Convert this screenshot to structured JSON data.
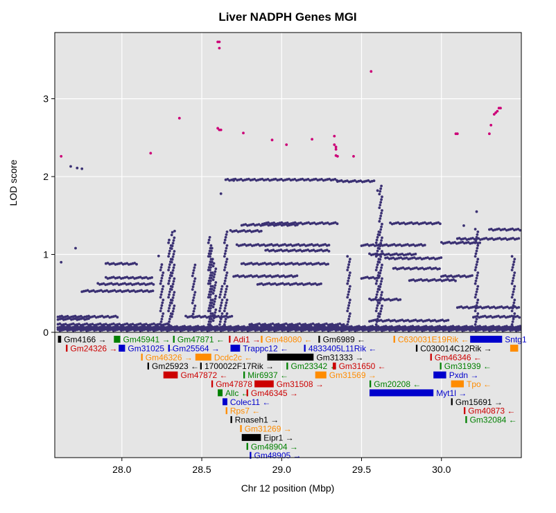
{
  "chart_data": {
    "type": "scatter",
    "title": "Liver NADPH Genes MGI",
    "xlabel": "Chr 12 position (Mbp)",
    "ylabel": "LOD score",
    "xlim": [
      27.58,
      30.5
    ],
    "ylim": [
      0,
      3.85
    ],
    "x_ticks": [
      "28.0",
      "28.5",
      "29.0",
      "29.5",
      "30.0"
    ],
    "y_ticks": [
      "0",
      "1",
      "2",
      "3"
    ],
    "grid": true,
    "colors": {
      "background": "#e5e5e5",
      "grid": "#ffffff",
      "points": "#3b3173",
      "highlight": "#cc0077"
    },
    "highlight_points": [
      {
        "x": 27.62,
        "y": 2.26
      },
      {
        "x": 28.18,
        "y": 2.3
      },
      {
        "x": 28.36,
        "y": 2.75
      },
      {
        "x": 28.6,
        "y": 3.73
      },
      {
        "x": 28.61,
        "y": 3.73
      },
      {
        "x": 28.61,
        "y": 3.65
      },
      {
        "x": 28.6,
        "y": 2.62
      },
      {
        "x": 28.61,
        "y": 2.6
      },
      {
        "x": 28.62,
        "y": 2.6
      },
      {
        "x": 28.76,
        "y": 2.56
      },
      {
        "x": 28.94,
        "y": 2.47
      },
      {
        "x": 29.03,
        "y": 2.41
      },
      {
        "x": 29.19,
        "y": 2.48
      },
      {
        "x": 29.33,
        "y": 2.52
      },
      {
        "x": 29.33,
        "y": 2.41
      },
      {
        "x": 29.34,
        "y": 2.38
      },
      {
        "x": 29.34,
        "y": 2.35
      },
      {
        "x": 29.34,
        "y": 2.27
      },
      {
        "x": 29.35,
        "y": 2.26
      },
      {
        "x": 29.45,
        "y": 2.26
      },
      {
        "x": 29.56,
        "y": 3.35
      },
      {
        "x": 30.09,
        "y": 2.55
      },
      {
        "x": 30.1,
        "y": 2.55
      },
      {
        "x": 30.3,
        "y": 2.55
      },
      {
        "x": 30.31,
        "y": 2.66
      },
      {
        "x": 30.33,
        "y": 2.8
      },
      {
        "x": 30.34,
        "y": 2.82
      },
      {
        "x": 30.35,
        "y": 2.84
      },
      {
        "x": 30.36,
        "y": 2.88
      },
      {
        "x": 30.37,
        "y": 2.88
      }
    ],
    "point_segments": [
      {
        "x0": 27.6,
        "x1": 30.5,
        "y": 0.07
      },
      {
        "x0": 27.6,
        "x1": 30.5,
        "y": 0.05
      },
      {
        "x0": 27.6,
        "x1": 30.5,
        "y": 0.03
      },
      {
        "x0": 27.6,
        "x1": 28.3,
        "y": 0.1
      },
      {
        "x0": 28.8,
        "x1": 29.4,
        "y": 0.1
      },
      {
        "x0": 27.6,
        "x1": 27.98,
        "y": 0.2
      },
      {
        "x0": 27.6,
        "x1": 27.8,
        "y": 0.17
      },
      {
        "x0": 27.75,
        "x1": 28.2,
        "y": 0.53
      },
      {
        "x0": 27.85,
        "x1": 28.2,
        "y": 0.62
      },
      {
        "x0": 27.9,
        "x1": 28.2,
        "y": 0.7
      },
      {
        "x0": 27.9,
        "x1": 28.1,
        "y": 0.88
      },
      {
        "x0": 28.65,
        "x1": 29.35,
        "y": 1.96
      },
      {
        "x0": 29.35,
        "x1": 29.58,
        "y": 1.94
      },
      {
        "x0": 28.75,
        "x1": 29.1,
        "y": 1.38
      },
      {
        "x0": 28.88,
        "x1": 29.35,
        "y": 1.4
      },
      {
        "x0": 28.68,
        "x1": 28.88,
        "y": 1.3
      },
      {
        "x0": 28.72,
        "x1": 29.3,
        "y": 1.12
      },
      {
        "x0": 28.9,
        "x1": 29.3,
        "y": 1.05
      },
      {
        "x0": 28.75,
        "x1": 29.3,
        "y": 0.88
      },
      {
        "x0": 28.7,
        "x1": 29.1,
        "y": 0.72
      },
      {
        "x0": 28.85,
        "x1": 29.25,
        "y": 0.62
      },
      {
        "x0": 29.5,
        "x1": 29.9,
        "y": 1.12
      },
      {
        "x0": 29.55,
        "x1": 29.85,
        "y": 1.0
      },
      {
        "x0": 29.68,
        "x1": 30.0,
        "y": 1.4
      },
      {
        "x0": 29.65,
        "x1": 30.0,
        "y": 0.95
      },
      {
        "x0": 29.7,
        "x1": 30.0,
        "y": 0.82
      },
      {
        "x0": 30.0,
        "x1": 30.2,
        "y": 0.72
      },
      {
        "x0": 29.8,
        "x1": 30.1,
        "y": 0.67
      },
      {
        "x0": 29.5,
        "x1": 29.62,
        "y": 0.7
      },
      {
        "x0": 29.55,
        "x1": 29.75,
        "y": 0.42
      },
      {
        "x0": 30.0,
        "x1": 30.25,
        "y": 1.15
      },
      {
        "x0": 30.1,
        "x1": 30.5,
        "y": 1.2
      },
      {
        "x0": 30.3,
        "x1": 30.5,
        "y": 1.32
      },
      {
        "x0": 30.1,
        "x1": 30.5,
        "y": 0.32
      },
      {
        "x0": 30.2,
        "x1": 30.5,
        "y": 0.2
      },
      {
        "x0": 29.55,
        "x1": 30.05,
        "y": 0.15
      },
      {
        "x0": 28.4,
        "x1": 28.7,
        "y": 0.2
      }
    ],
    "point_columns": [
      {
        "x": 28.55,
        "y0": 0.1,
        "y1": 1.25
      },
      {
        "x": 28.56,
        "y0": 0.1,
        "y1": 1.1
      },
      {
        "x": 28.58,
        "y0": 0.15,
        "y1": 0.9
      },
      {
        "x": 28.62,
        "y0": 0.1,
        "y1": 0.6
      },
      {
        "x": 28.65,
        "y0": 0.1,
        "y1": 1.3
      },
      {
        "x": 28.3,
        "y0": 0.1,
        "y1": 1.2
      },
      {
        "x": 28.32,
        "y0": 0.2,
        "y1": 1.3
      },
      {
        "x": 28.25,
        "y0": 0.1,
        "y1": 0.9
      },
      {
        "x": 28.45,
        "y0": 0.2,
        "y1": 0.9
      },
      {
        "x": 29.42,
        "y0": 0.1,
        "y1": 1.0
      },
      {
        "x": 29.6,
        "y0": 0.1,
        "y1": 1.3
      },
      {
        "x": 29.62,
        "y0": 0.2,
        "y1": 1.9
      },
      {
        "x": 30.22,
        "y0": 0.1,
        "y1": 1.35
      },
      {
        "x": 30.45,
        "y0": 0.1,
        "y1": 1.0
      }
    ],
    "scattered_points": [
      {
        "x": 27.68,
        "y": 2.13
      },
      {
        "x": 27.72,
        "y": 2.11
      },
      {
        "x": 27.75,
        "y": 2.1
      },
      {
        "x": 27.71,
        "y": 1.08
      },
      {
        "x": 27.62,
        "y": 0.9
      },
      {
        "x": 28.23,
        "y": 0.98
      },
      {
        "x": 28.33,
        "y": 1.3
      },
      {
        "x": 28.62,
        "y": 1.78
      },
      {
        "x": 28.7,
        "y": 1.95
      },
      {
        "x": 29.6,
        "y": 1.82
      },
      {
        "x": 30.14,
        "y": 1.37
      },
      {
        "x": 30.22,
        "y": 1.55
      }
    ]
  },
  "genes": [
    {
      "label": "Gm4166 →",
      "color": "#000000",
      "start": 27.6,
      "end": 27.62,
      "row": 0
    },
    {
      "label": "Gm45941 →",
      "color": "#008000",
      "start": 27.95,
      "end": 27.99,
      "row": 0
    },
    {
      "label": "Gm47871 ←",
      "color": "#008000",
      "start": 28.32,
      "end": 28.33,
      "row": 0
    },
    {
      "label": "Adi1 →",
      "color": "#cc0000",
      "start": 28.67,
      "end": 28.68,
      "row": 0
    },
    {
      "label": "Gm48080 ←",
      "color": "#ff8c00",
      "start": 28.87,
      "end": 28.88,
      "row": 0
    },
    {
      "label": "Gm6989 ←",
      "color": "#000000",
      "start": 29.23,
      "end": 29.24,
      "row": 0
    },
    {
      "label": "C630031E19Rik ←",
      "color": "#ff8c00",
      "start": 29.7,
      "end": 29.71,
      "row": 0
    },
    {
      "label": "Sntg1",
      "color": "#0000cc",
      "start": 30.18,
      "end": 30.38,
      "row": 0,
      "label_inside": true
    },
    {
      "label": "Gm24326 →",
      "color": "#cc0000",
      "start": 27.65,
      "end": 27.66,
      "row": 1
    },
    {
      "label": "Gm31025 ←",
      "color": "#0000cc",
      "start": 27.98,
      "end": 28.02,
      "row": 1
    },
    {
      "label": "Gm25564 →",
      "color": "#0000cc",
      "start": 28.29,
      "end": 28.3,
      "row": 1
    },
    {
      "label": "Trappc12 ←",
      "color": "#0000cc",
      "start": 28.68,
      "end": 28.74,
      "row": 1
    },
    {
      "label": "4833405L11Rik ←",
      "color": "#0000cc",
      "start": 29.14,
      "end": 29.15,
      "row": 1
    },
    {
      "label": "C030014C12Rik →",
      "color": "#000000",
      "start": 29.84,
      "end": 29.85,
      "row": 1
    },
    {
      "label": "",
      "color": "#ff8c00",
      "start": 30.43,
      "end": 30.48,
      "row": 1
    },
    {
      "label": "Gm46326 →",
      "color": "#ff8c00",
      "start": 28.12,
      "end": 28.13,
      "row": 2
    },
    {
      "label": "Dcdc2c ←",
      "color": "#ff8c00",
      "start": 28.46,
      "end": 28.56,
      "row": 2
    },
    {
      "label": "Gm31333 →",
      "color": "#000000",
      "start": 28.91,
      "end": 29.2,
      "row": 2
    },
    {
      "label": "Gm46346 ←",
      "color": "#cc0000",
      "start": 29.93,
      "end": 29.94,
      "row": 2
    },
    {
      "label": "Gm25923 ←",
      "color": "#000000",
      "start": 28.16,
      "end": 28.17,
      "row": 3
    },
    {
      "label": "1700022F17Rik →",
      "color": "#000000",
      "start": 28.49,
      "end": 28.5,
      "row": 3
    },
    {
      "label": "Gm23342 ←",
      "color": "#008000",
      "start": 29.03,
      "end": 29.04,
      "row": 3
    },
    {
      "label": "Gm31650 ←",
      "color": "#cc0000",
      "start": 29.32,
      "end": 29.34,
      "row": 3
    },
    {
      "label": "Gm31939 ←",
      "color": "#008000",
      "start": 29.99,
      "end": 30.0,
      "row": 3
    },
    {
      "label": "Gm47872 ←",
      "color": "#cc0000",
      "start": 28.26,
      "end": 28.35,
      "row": 4
    },
    {
      "label": "Mir6937 ←",
      "color": "#008000",
      "start": 28.76,
      "end": 28.77,
      "row": 4
    },
    {
      "label": "Gm31569 →",
      "color": "#ff8c00",
      "start": 29.21,
      "end": 29.28,
      "row": 4
    },
    {
      "label": "Pxdn →",
      "color": "#0000cc",
      "start": 29.95,
      "end": 30.03,
      "row": 4
    },
    {
      "label": "Gm47878 →",
      "color": "#cc0000",
      "start": 28.56,
      "end": 28.57,
      "row": 5
    },
    {
      "label": "Gm31508 →",
      "color": "#cc0000",
      "start": 28.83,
      "end": 28.95,
      "row": 5
    },
    {
      "label": "Gm20208 ←",
      "color": "#008000",
      "start": 29.55,
      "end": 29.56,
      "row": 5
    },
    {
      "label": "Tpo ←",
      "color": "#ff8c00",
      "start": 30.06,
      "end": 30.14,
      "row": 5
    },
    {
      "label": "Allc ←",
      "color": "#008000",
      "start": 28.6,
      "end": 28.63,
      "row": 6
    },
    {
      "label": "Gm46345 →",
      "color": "#cc0000",
      "start": 28.78,
      "end": 28.79,
      "row": 6
    },
    {
      "label": "Myt1l →",
      "color": "#0000cc",
      "start": 29.55,
      "end": 29.95,
      "row": 6
    },
    {
      "label": "Colec11 ←",
      "color": "#0000cc",
      "start": 28.63,
      "end": 28.66,
      "row": 7
    },
    {
      "label": "Gm15691 →",
      "color": "#000000",
      "start": 30.06,
      "end": 30.07,
      "row": 7
    },
    {
      "label": "Rps7 ←",
      "color": "#ff8c00",
      "start": 28.65,
      "end": 28.66,
      "row": 8
    },
    {
      "label": "Gm40873 ←",
      "color": "#cc0000",
      "start": 30.14,
      "end": 30.15,
      "row": 8
    },
    {
      "label": "Rnaseh1 →",
      "color": "#000000",
      "start": 28.68,
      "end": 28.69,
      "row": 9
    },
    {
      "label": "Gm32084 ←",
      "color": "#008000",
      "start": 30.15,
      "end": 30.16,
      "row": 9
    },
    {
      "label": "Gm31269 →",
      "color": "#ff8c00",
      "start": 28.74,
      "end": 28.75,
      "row": 10
    },
    {
      "label": "Eipr1 →",
      "color": "#000000",
      "start": 28.75,
      "end": 28.87,
      "row": 11
    },
    {
      "label": "Gm48904 →",
      "color": "#008000",
      "start": 28.78,
      "end": 28.79,
      "row": 12
    },
    {
      "label": "Gm48905 →",
      "color": "#0000cc",
      "start": 28.8,
      "end": 28.81,
      "row": 13
    }
  ]
}
